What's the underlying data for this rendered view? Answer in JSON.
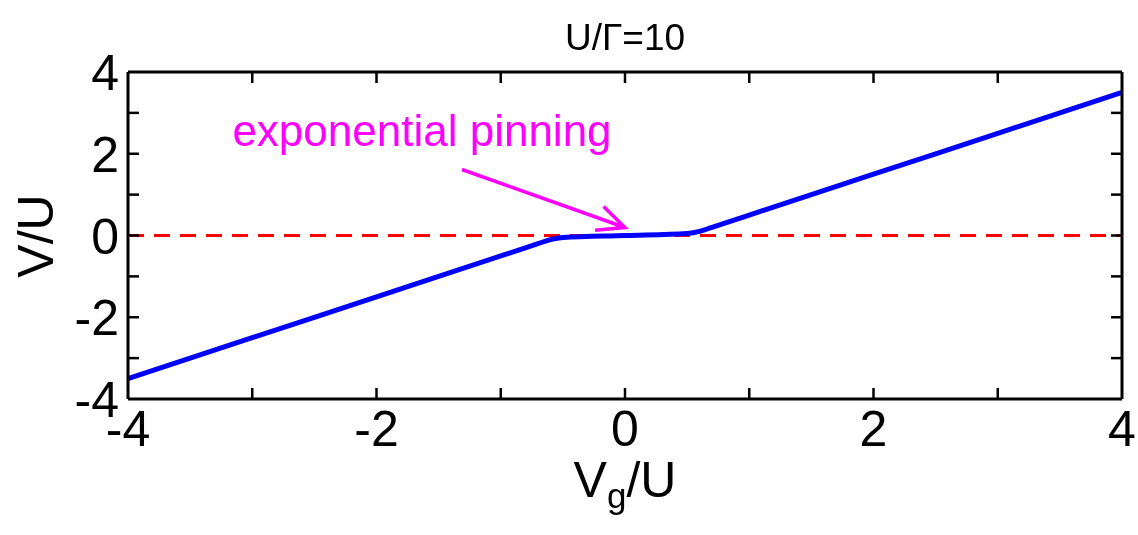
{
  "chart_data": {
    "type": "line",
    "title": "U/Γ=10",
    "xlabel": "V$_{g}$/U",
    "ylabel": "V/U",
    "x": [
      -4,
      -3,
      -2,
      -1,
      -0.7,
      -0.6,
      -0.5,
      0,
      0.5,
      0.6,
      0.7,
      1,
      2,
      3,
      4
    ],
    "series": [
      {
        "color": "#0000ff",
        "values": [
          -3.5,
          -2.5,
          -1.5,
          -0.5,
          -0.2,
          -0.1,
          -0.05,
          0,
          0.05,
          0.1,
          0.2,
          0.5,
          1.5,
          2.5,
          3.5
        ]
      }
    ],
    "xlim": [
      -4,
      4
    ],
    "ylim": [
      -4,
      4
    ],
    "xticks": [
      -4,
      {
        "value": -3,
        "label": null
      },
      -2,
      {
        "value": -1,
        "label": null
      },
      0,
      {
        "value": 1,
        "label": null
      },
      2,
      {
        "value": 3,
        "label": null
      },
      4
    ],
    "yticks": [
      -4,
      {
        "value": -3,
        "label": null
      },
      -2,
      {
        "value": -1,
        "label": null
      },
      0,
      {
        "value": 1,
        "label": null
      },
      2,
      {
        "value": 3,
        "label": null
      },
      4
    ],
    "ref_lines": [
      {
        "axis": "y",
        "value": 0,
        "color": "#ff0000",
        "line_style": "dashed"
      }
    ],
    "annotations": [
      {
        "text": "exponential pinning",
        "x": 0,
        "y": 0
      }
    ]
  }
}
